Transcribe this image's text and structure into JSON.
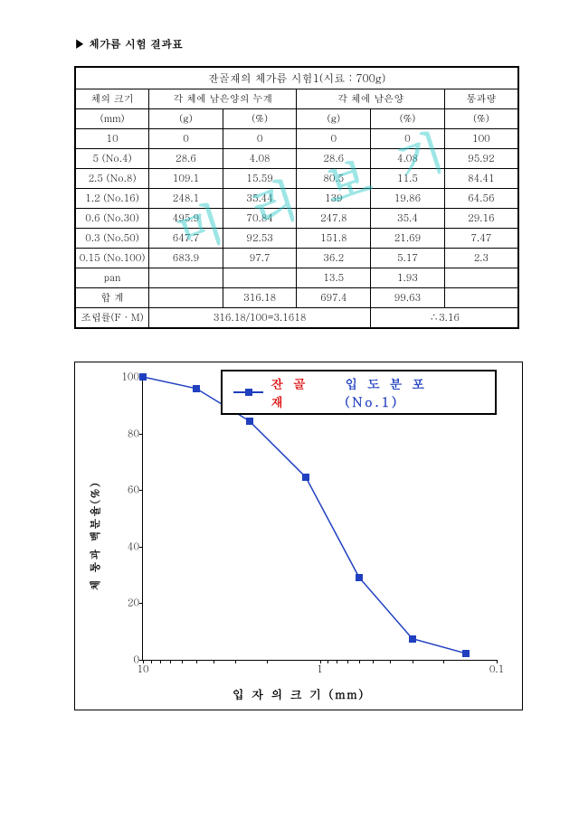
{
  "section_title": "체가름 시험 결과표",
  "table": {
    "title": "잔골재의 체가름 시험1(시료 : 700g)",
    "head": {
      "c1a": "체의 크기",
      "c1b": "(mm)",
      "grp1": "각 체에 남은양의 누계",
      "g1a": "(g)",
      "g1b": "(%)",
      "grp2": "각 체에 남은양",
      "g2a": "(g)",
      "g2b": "(%)",
      "grp3": "통과량",
      "g3": "(%)"
    },
    "rows": [
      {
        "a": "10",
        "b": "0",
        "c": "0",
        "d": "0",
        "e": "0",
        "f": "100"
      },
      {
        "a": "5 (No.4)",
        "b": "28.6",
        "c": "4.08",
        "d": "28.6",
        "e": "4.08",
        "f": "95.92"
      },
      {
        "a": "2.5 (No.8)",
        "b": "109.1",
        "c": "15.59",
        "d": "80.5",
        "e": "11.5",
        "f": "84.41"
      },
      {
        "a": "1.2 (No.16)",
        "b": "248.1",
        "c": "35.44",
        "d": "139",
        "e": "19.86",
        "f": "64.56"
      },
      {
        "a": "0.6 (No.30)",
        "b": "495.9",
        "c": "70.84",
        "d": "247.8",
        "e": "35.4",
        "f": "29.16"
      },
      {
        "a": "0.3 (No.50)",
        "b": "647.7",
        "c": "92.53",
        "d": "151.8",
        "e": "21.69",
        "f": "7.47"
      },
      {
        "a": "0.15 (No.100)",
        "b": "683.9",
        "c": "97.7",
        "d": "36.2",
        "e": "5.17",
        "f": "2.3"
      },
      {
        "a": "pan",
        "b": "",
        "c": "",
        "d": "13.5",
        "e": "1.93",
        "f": ""
      },
      {
        "a": "합 계",
        "b": "",
        "c": "316.18",
        "d": "697.4",
        "e": "99.63",
        "f": ""
      }
    ],
    "fm": {
      "label": "조립률(F · M)",
      "val": "316.18/100=3.1618",
      "res": "∴3.16"
    }
  },
  "chart": {
    "type": "line",
    "legend_a": "잔 골 재",
    "legend_b": "입 도 분 포  (No.1)",
    "ylabel": "체 통과 백분율(%)",
    "xlabel": "입 자 의   크 기 (mm)",
    "yticks": [
      0,
      20,
      40,
      60,
      80,
      100
    ],
    "xticks": [
      {
        "v": 10,
        "l": "10"
      },
      {
        "v": 1,
        "l": "1"
      },
      {
        "v": 0.1,
        "l": "0.1"
      }
    ],
    "xlim": [
      10,
      0.1
    ],
    "ylim": [
      0,
      100
    ],
    "series_color": "#2040c0",
    "points": [
      {
        "x": 10,
        "y": 100
      },
      {
        "x": 5,
        "y": 95.92
      },
      {
        "x": 2.5,
        "y": 84.41
      },
      {
        "x": 1.2,
        "y": 64.56
      },
      {
        "x": 0.6,
        "y": 29.16
      },
      {
        "x": 0.3,
        "y": 7.47
      },
      {
        "x": 0.15,
        "y": 2.3
      }
    ]
  },
  "watermark": "미 리 보 기"
}
